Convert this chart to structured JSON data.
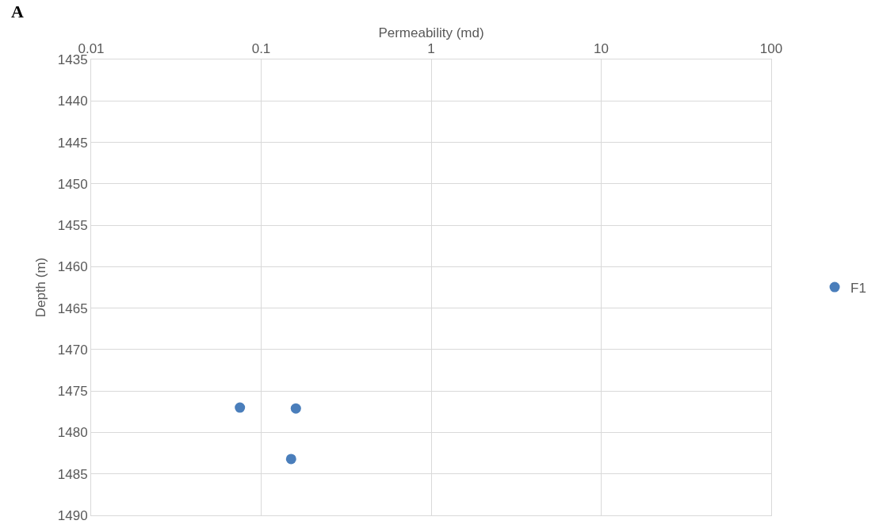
{
  "chart_data": {
    "type": "scatter",
    "xlabel": "Permeability (md)",
    "ylabel": "Depth (m)",
    "annotations": [
      "A"
    ],
    "series": [
      {
        "name": "F1",
        "color": "#4a7ebb",
        "x": [
          0.075,
          0.16,
          0.15
        ],
        "values": [
          1477,
          1477.1,
          1483.2
        ]
      }
    ],
    "log": "x",
    "xlim": [
      0.01,
      100
    ],
    "xticks": [
      0.01,
      0.1,
      1,
      10,
      100
    ],
    "ylim": [
      1490,
      1435
    ],
    "yticks": [
      1435,
      1440,
      1445,
      1450,
      1455,
      1460,
      1465,
      1470,
      1475,
      1480,
      1485,
      1490
    ],
    "grid": true,
    "legend": "right",
    "marker": "circle"
  }
}
